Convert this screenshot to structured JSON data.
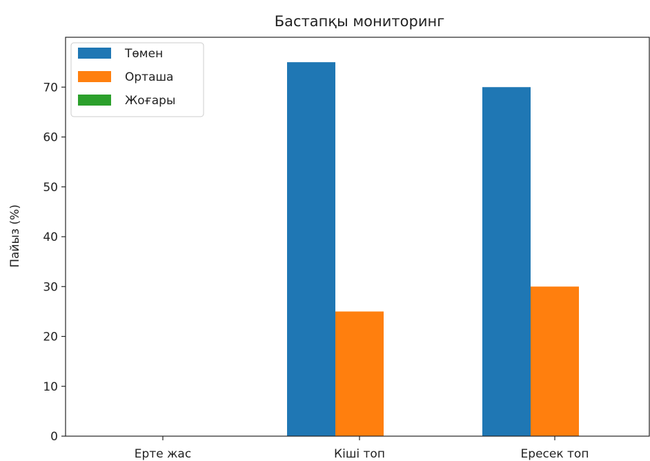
{
  "chart_data": {
    "type": "bar",
    "title": "Бастапқы мониторинг",
    "xlabel": "",
    "ylabel": "Пайыз (%)",
    "categories": [
      "Ерте жас",
      "Кіші топ",
      "Ересек топ"
    ],
    "series": [
      {
        "name": "Төмен",
        "color": "#1f77b4",
        "values": [
          0,
          75,
          70
        ]
      },
      {
        "name": "Орташа",
        "color": "#ff7f0e",
        "values": [
          0,
          25,
          30
        ]
      },
      {
        "name": "Жоғары",
        "color": "#2ca02c",
        "values": [
          0,
          0,
          0
        ]
      }
    ],
    "ylim": [
      0,
      80
    ],
    "yticks": [
      0,
      10,
      20,
      30,
      40,
      50,
      60,
      70
    ],
    "grid": false,
    "legend_position": "top-left"
  }
}
